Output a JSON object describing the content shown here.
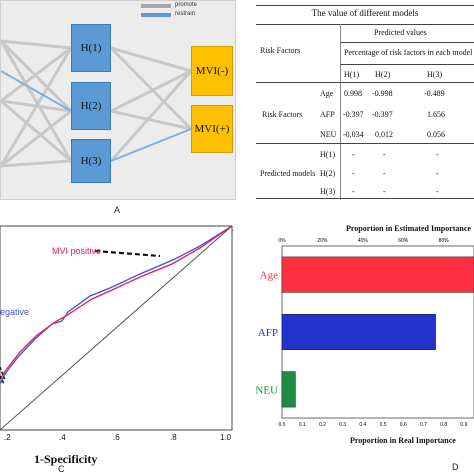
{
  "panel_a": {
    "hidden_nodes": [
      "H(1)",
      "H(2)",
      "H(3)"
    ],
    "output_nodes": [
      "MVI(-)",
      "MVI(+)"
    ],
    "legend": {
      "promote": "promote",
      "restrain": "restrain",
      "promote_color": "#a6a6a6",
      "restrain_color": "#5b9bd5"
    },
    "caption": "A"
  },
  "panel_b": {
    "title": "The value of different models",
    "predicted_values": "Predicted values",
    "risk_factors_header": "Risk Factors",
    "subheader": "Percentage of risk factors in each model",
    "columns": [
      "H(1)",
      "H(2)",
      "H(3)"
    ],
    "group1_label": "Risk Factors",
    "rows1": [
      {
        "name": "Age",
        "v": [
          "0.998",
          "-0.998",
          "-0.489"
        ]
      },
      {
        "name": "AFP",
        "v": [
          "-0.397",
          "-0.397",
          "1.656"
        ]
      },
      {
        "name": "NEU",
        "v": [
          "-0.034",
          "0.012",
          "0.056"
        ]
      }
    ],
    "group2_label": "Predicted models",
    "rows2": [
      {
        "name": "H(1)",
        "v": [
          "-",
          "-",
          "-"
        ]
      },
      {
        "name": "H(2)",
        "v": [
          "-",
          "-",
          "-"
        ]
      },
      {
        "name": "H(3)",
        "v": [
          "-",
          "-",
          "-"
        ]
      }
    ]
  },
  "panel_c": {
    "label_positive": "MVI positive",
    "label_negative": "egative",
    "xlabel": "1-Specificity",
    "caption": "C",
    "ticks": [
      ".2",
      ".4",
      ".6",
      ".8",
      "1.0"
    ],
    "colors": {
      "positive": "#e8175d",
      "negative": "#3a55d8"
    }
  },
  "chart_data": {
    "type": "bar",
    "title": "Proportion in Estimated Importance",
    "xlabel": "Proportion in Real Importance",
    "categories": [
      "Age",
      "AFP",
      "NEU"
    ],
    "values": [
      1.0,
      0.8,
      0.07
    ],
    "colors": [
      "#ff3040",
      "#2233cc",
      "#1e8c45"
    ],
    "top_ticks": [
      "0%",
      "20%",
      "40%",
      "60%",
      "80%"
    ],
    "bottom_ticks": [
      "0.0",
      "0.1",
      "0.2",
      "0.3",
      "0.4",
      "0.5",
      "0.6",
      "0.7",
      "0.8",
      "0.9"
    ],
    "caption": "D"
  }
}
